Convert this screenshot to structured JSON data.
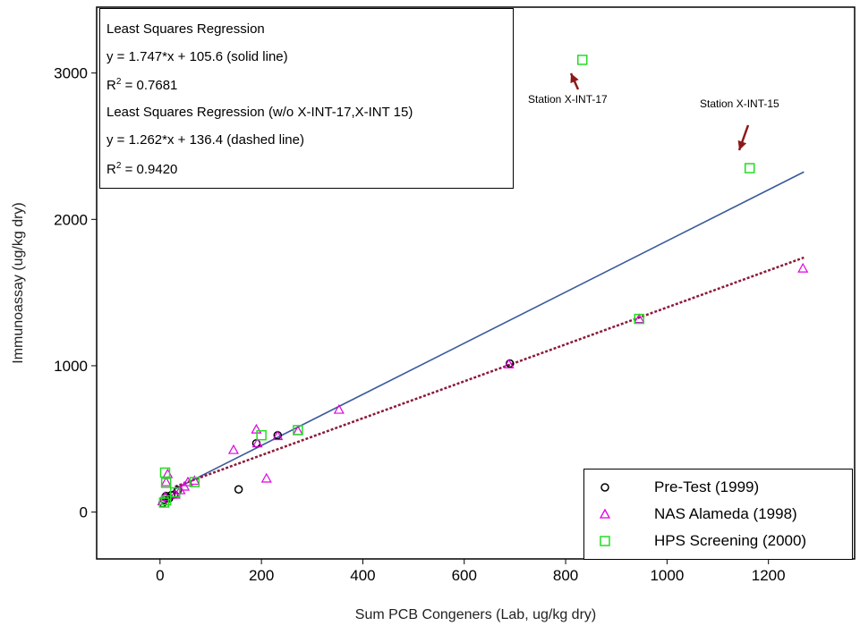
{
  "chart_data": {
    "type": "scatter",
    "xlabel": "Sum PCB Congeners (Lab, ug/kg dry)",
    "ylabel": "Immunoassay (ug/kg dry)",
    "xlim": [
      -125,
      1370
    ],
    "ylim": [
      -320,
      3450
    ],
    "x_ticks": [
      0,
      200,
      400,
      600,
      800,
      1000,
      1200
    ],
    "y_ticks": [
      0,
      1000,
      2000,
      3000
    ],
    "grid": false,
    "legend_position": "bottom-right",
    "series": [
      {
        "name": "Pre-Test (1999)",
        "marker": "circle",
        "color": "#000000",
        "points": [
          [
            5,
            60
          ],
          [
            8,
            85
          ],
          [
            10,
            100
          ],
          [
            12,
            110
          ],
          [
            18,
            95
          ],
          [
            22,
            115
          ],
          [
            28,
            120
          ],
          [
            35,
            150
          ],
          [
            155,
            155
          ],
          [
            190,
            470
          ],
          [
            232,
            525
          ],
          [
            690,
            1015
          ]
        ]
      },
      {
        "name": "NAS Alameda (1998)",
        "marker": "triangle",
        "color": "#e000e0",
        "points": [
          [
            5,
            75
          ],
          [
            10,
            105
          ],
          [
            12,
            205
          ],
          [
            15,
            260
          ],
          [
            30,
            120
          ],
          [
            40,
            150
          ],
          [
            48,
            175
          ],
          [
            55,
            205
          ],
          [
            68,
            215
          ],
          [
            145,
            425
          ],
          [
            190,
            565
          ],
          [
            192,
            470
          ],
          [
            210,
            230
          ],
          [
            232,
            520
          ],
          [
            272,
            555
          ],
          [
            353,
            700
          ],
          [
            688,
            1010
          ],
          [
            945,
            1320
          ],
          [
            1268,
            1665
          ]
        ]
      },
      {
        "name": "HPS Screening (2000)",
        "marker": "square",
        "color": "#22dd22",
        "points": [
          [
            10,
            270
          ],
          [
            12,
            200
          ],
          [
            8,
            65
          ],
          [
            12,
            80
          ],
          [
            30,
            135
          ],
          [
            68,
            205
          ],
          [
            200,
            525
          ],
          [
            272,
            560
          ],
          [
            945,
            1320
          ],
          [
            833,
            3090
          ],
          [
            1163,
            2350
          ]
        ]
      }
    ],
    "regression_lines": [
      {
        "label": "solid line",
        "slope": 1.747,
        "intercept": 105.6,
        "x_range": [
          30,
          1270
        ],
        "style": "solid",
        "color": "#3a5a9a"
      },
      {
        "label": "dashed line",
        "slope": 1.262,
        "intercept": 136.4,
        "x_range": [
          30,
          1270
        ],
        "style": "dashed",
        "color": "#8b1a3a"
      }
    ],
    "stats_box": {
      "line1": "Least Squares Regression",
      "line2": "y = 1.747*x + 105.6 (solid line)",
      "line3_prefix": "R",
      "line3_sup": "2",
      "line3_value": " = 0.7681",
      "line4": "Least Squares Regression (w/o X-INT-17,X-INT 15)",
      "line5": "y = 1.262*x + 136.4 (dashed line)",
      "line6_prefix": "R",
      "line6_sup": "2",
      "line6_value": " = 0.9420"
    },
    "annotations": [
      {
        "text": "Station X-INT-17",
        "target": [
          833,
          3090
        ]
      },
      {
        "text": "Station X-INT-15",
        "target": [
          1163,
          2350
        ]
      }
    ],
    "arrow_color": "#8b1a1a"
  }
}
